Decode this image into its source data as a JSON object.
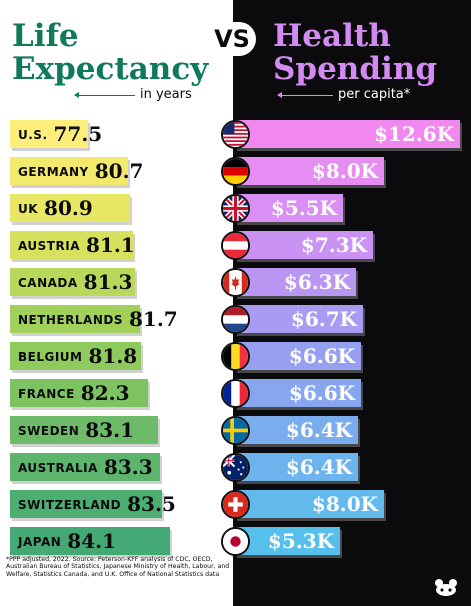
{
  "header": {
    "left_title_line1": "Life",
    "left_title_line2": "Expectancy",
    "left_subtitle": "in years",
    "vs": "VS",
    "right_title_line1": "Health",
    "right_title_line2": "Spending",
    "right_subtitle": "per capita*"
  },
  "chart_data": {
    "type": "bar",
    "categories": [
      "U.S.",
      "GERMANY",
      "UK",
      "AUSTRIA",
      "CANADA",
      "NETHERLANDS",
      "BELGIUM",
      "FRANCE",
      "SWEDEN",
      "AUSTRALIA",
      "SWITZERLAND",
      "JAPAN"
    ],
    "series": [
      {
        "name": "Life Expectancy",
        "values": [
          77.5,
          80.7,
          80.9,
          81.1,
          81.3,
          81.7,
          81.8,
          82.3,
          83.1,
          83.3,
          83.5,
          84.1
        ],
        "labels": [
          "77.5",
          "80.7",
          "80.9",
          "81.1",
          "81.3",
          "81.7",
          "81.8",
          "82.3",
          "83.1",
          "83.3",
          "83.5",
          "84.1"
        ]
      },
      {
        "name": "Health Spending",
        "values": [
          12.6,
          8.0,
          5.5,
          7.3,
          6.3,
          6.7,
          6.6,
          6.6,
          6.4,
          6.4,
          8.0,
          5.3
        ],
        "labels": [
          "$12.6K",
          "$8.0K",
          "$5.5K",
          "$7.3K",
          "$6.3K",
          "$6.7K",
          "$6.6K",
          "$6.6K",
          "$6.4K",
          "$6.4K",
          "$8.0K",
          "$5.3K"
        ]
      }
    ],
    "flag_icons": [
      "us-flag-icon",
      "germany-flag-icon",
      "uk-flag-icon",
      "austria-flag-icon",
      "canada-flag-icon",
      "netherlands-flag-icon",
      "belgium-flag-icon",
      "france-flag-icon",
      "sweden-flag-icon",
      "australia-flag-icon",
      "switzerland-flag-icon",
      "japan-flag-icon"
    ],
    "colors": {
      "left_bars": [
        "#fdee7c",
        "#f3e96c",
        "#e7e665",
        "#d7e15d",
        "#b8d85a",
        "#a1d15b",
        "#8fca5d",
        "#7ec362",
        "#6dbb69",
        "#5cb46d",
        "#4dae72",
        "#45a976"
      ],
      "right_bars": [
        "#f088f0",
        "#e58df3",
        "#da8ff4",
        "#c992f3",
        "#b996f2",
        "#a89bf1",
        "#97a0f0",
        "#88a6ef",
        "#7aadee",
        "#6db3ed",
        "#61b9ec",
        "#57bfeb"
      ]
    }
  },
  "footnote": "*PPP adjusted, 2022. Source: Peterson-KFF analysis of CDC, OECD, Australian Bureau of Statistics, Japanese Ministry of Health, Labour, and Welfare, Statistics Canada, and U.K. Office of National Statistics data"
}
